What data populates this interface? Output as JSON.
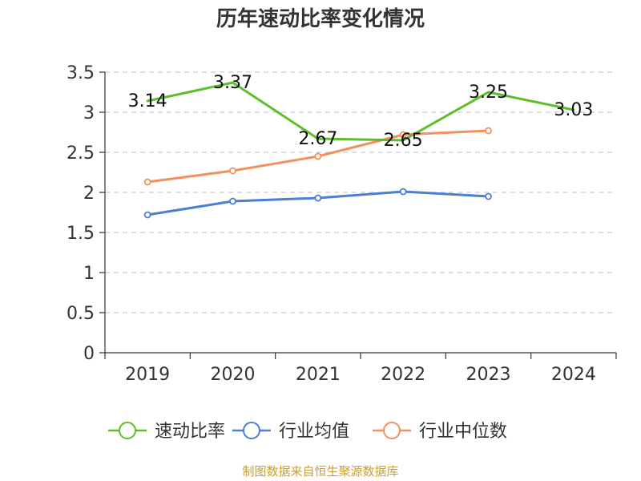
{
  "title": "历年速动比率变化情况",
  "source": "制图数据来自恒生聚源数据库",
  "colors": {
    "quick_ratio": "#5cbf2a",
    "industry_mean": "#4a7fd4",
    "industry_median": "#f4905e",
    "grid": "#cccccc",
    "axis": "#333333"
  },
  "chart_data": {
    "type": "line",
    "title": "历年速动比率变化情况",
    "categories": [
      "2019",
      "2020",
      "2021",
      "2022",
      "2023",
      "2024"
    ],
    "ylim": [
      0,
      3.5
    ],
    "yticks": [
      "0",
      "0.5",
      "1",
      "1.5",
      "2",
      "2.5",
      "3",
      "3.5"
    ],
    "grid": true,
    "legend_position": "bottom",
    "series": [
      {
        "key": "quick_ratio",
        "name": "速动比率",
        "values": [
          3.14,
          3.37,
          2.67,
          2.65,
          3.25,
          3.03
        ],
        "labels": [
          "3.14",
          "3.37",
          "2.67",
          "2.65",
          "3.25",
          "3.03"
        ],
        "show_labels": true,
        "show_points": false
      },
      {
        "key": "industry_mean",
        "name": "行业均值",
        "values": [
          1.72,
          1.89,
          1.93,
          2.01,
          1.95,
          null
        ],
        "show_labels": false,
        "show_points": true
      },
      {
        "key": "industry_median",
        "name": "行业中位数",
        "values": [
          2.13,
          2.27,
          2.45,
          2.72,
          2.77,
          null
        ],
        "show_labels": false,
        "show_points": true
      }
    ]
  }
}
